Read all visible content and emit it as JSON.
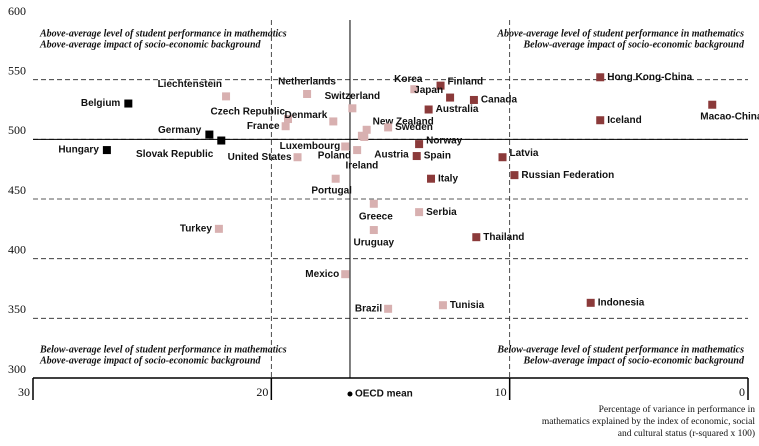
{
  "chart_data": {
    "type": "scatter",
    "xlim": [
      30,
      0
    ],
    "xticks": [
      30,
      20,
      10,
      0
    ],
    "ylim": [
      300,
      600
    ],
    "yticks": [
      300,
      350,
      400,
      450,
      500,
      550,
      600
    ],
    "reference_lines": {
      "x": 16.7,
      "y": 500
    },
    "reference_label": "OECD mean",
    "x_axis_label": [
      "Percentage of variance in performance in",
      "mathematics explained by the index of economic, social",
      "and cultural status (r-squared x 100)"
    ],
    "quadrants": {
      "top_left": [
        "Above-average level of student performance in mathematics",
        "Above-average impact of socio-economic background"
      ],
      "top_right": [
        "Above-average level of student performance in mathematics",
        "Below-average impact of socio-economic background"
      ],
      "bottom_left": [
        "Below-average level of student performance in mathematics",
        "Above-average impact of socio-economic background"
      ],
      "bottom_right": [
        "Below-average level of student performance in mathematics",
        "Below-average impact of socio-economic background"
      ]
    },
    "series": [
      {
        "color": "#000000",
        "labels": [
          "Belgium",
          "Hungary",
          "Germany",
          "Slovak Republic"
        ],
        "x": [
          26.0,
          26.9,
          22.6,
          22.1
        ],
        "values": [
          530,
          491,
          504,
          499
        ]
      },
      {
        "color": "#d8b0b0",
        "labels": [
          "Liechtenstein",
          "Netherlands",
          "Czech Republic",
          "France",
          "Denmark",
          "Switzerland",
          "Luxembourg",
          "United States",
          "Poland",
          "Portugal",
          "New Zealand",
          "Austria",
          "Ireland",
          "Sweden",
          "Korea",
          "Greece",
          "Serbia",
          "Uruguay",
          "Turkey",
          "Mexico",
          "Brazil",
          "Tunisia"
        ],
        "x": [
          21.9,
          18.5,
          19.3,
          19.4,
          17.4,
          16.6,
          16.9,
          18.9,
          16.4,
          17.3,
          16.0,
          16.1,
          16.2,
          15.1,
          14.0,
          15.7,
          13.8,
          15.7,
          22.2,
          16.9,
          15.1,
          12.8
        ],
        "values": [
          536,
          538,
          517,
          511,
          515,
          526,
          494,
          485,
          491,
          467,
          508,
          502,
          503,
          510,
          542,
          446,
          439,
          424,
          425,
          387,
          358,
          361
        ]
      },
      {
        "color": "#8b3a3a",
        "labels": [
          "Finland",
          "Japan",
          "Canada",
          "Hong Kong-China",
          "Macao-China",
          "Iceland",
          "Australia",
          "Norway",
          "Spain",
          "Latvia",
          "Italy",
          "Russian Federation",
          "Thailand",
          "Indonesia"
        ],
        "x": [
          12.9,
          12.5,
          11.5,
          6.2,
          1.5,
          6.2,
          13.4,
          13.8,
          13.9,
          10.3,
          13.3,
          9.8,
          11.4,
          6.6
        ],
        "values": [
          545,
          535,
          533,
          552,
          529,
          516,
          525,
          496,
          486,
          485,
          467,
          470,
          418,
          363
        ]
      }
    ]
  }
}
